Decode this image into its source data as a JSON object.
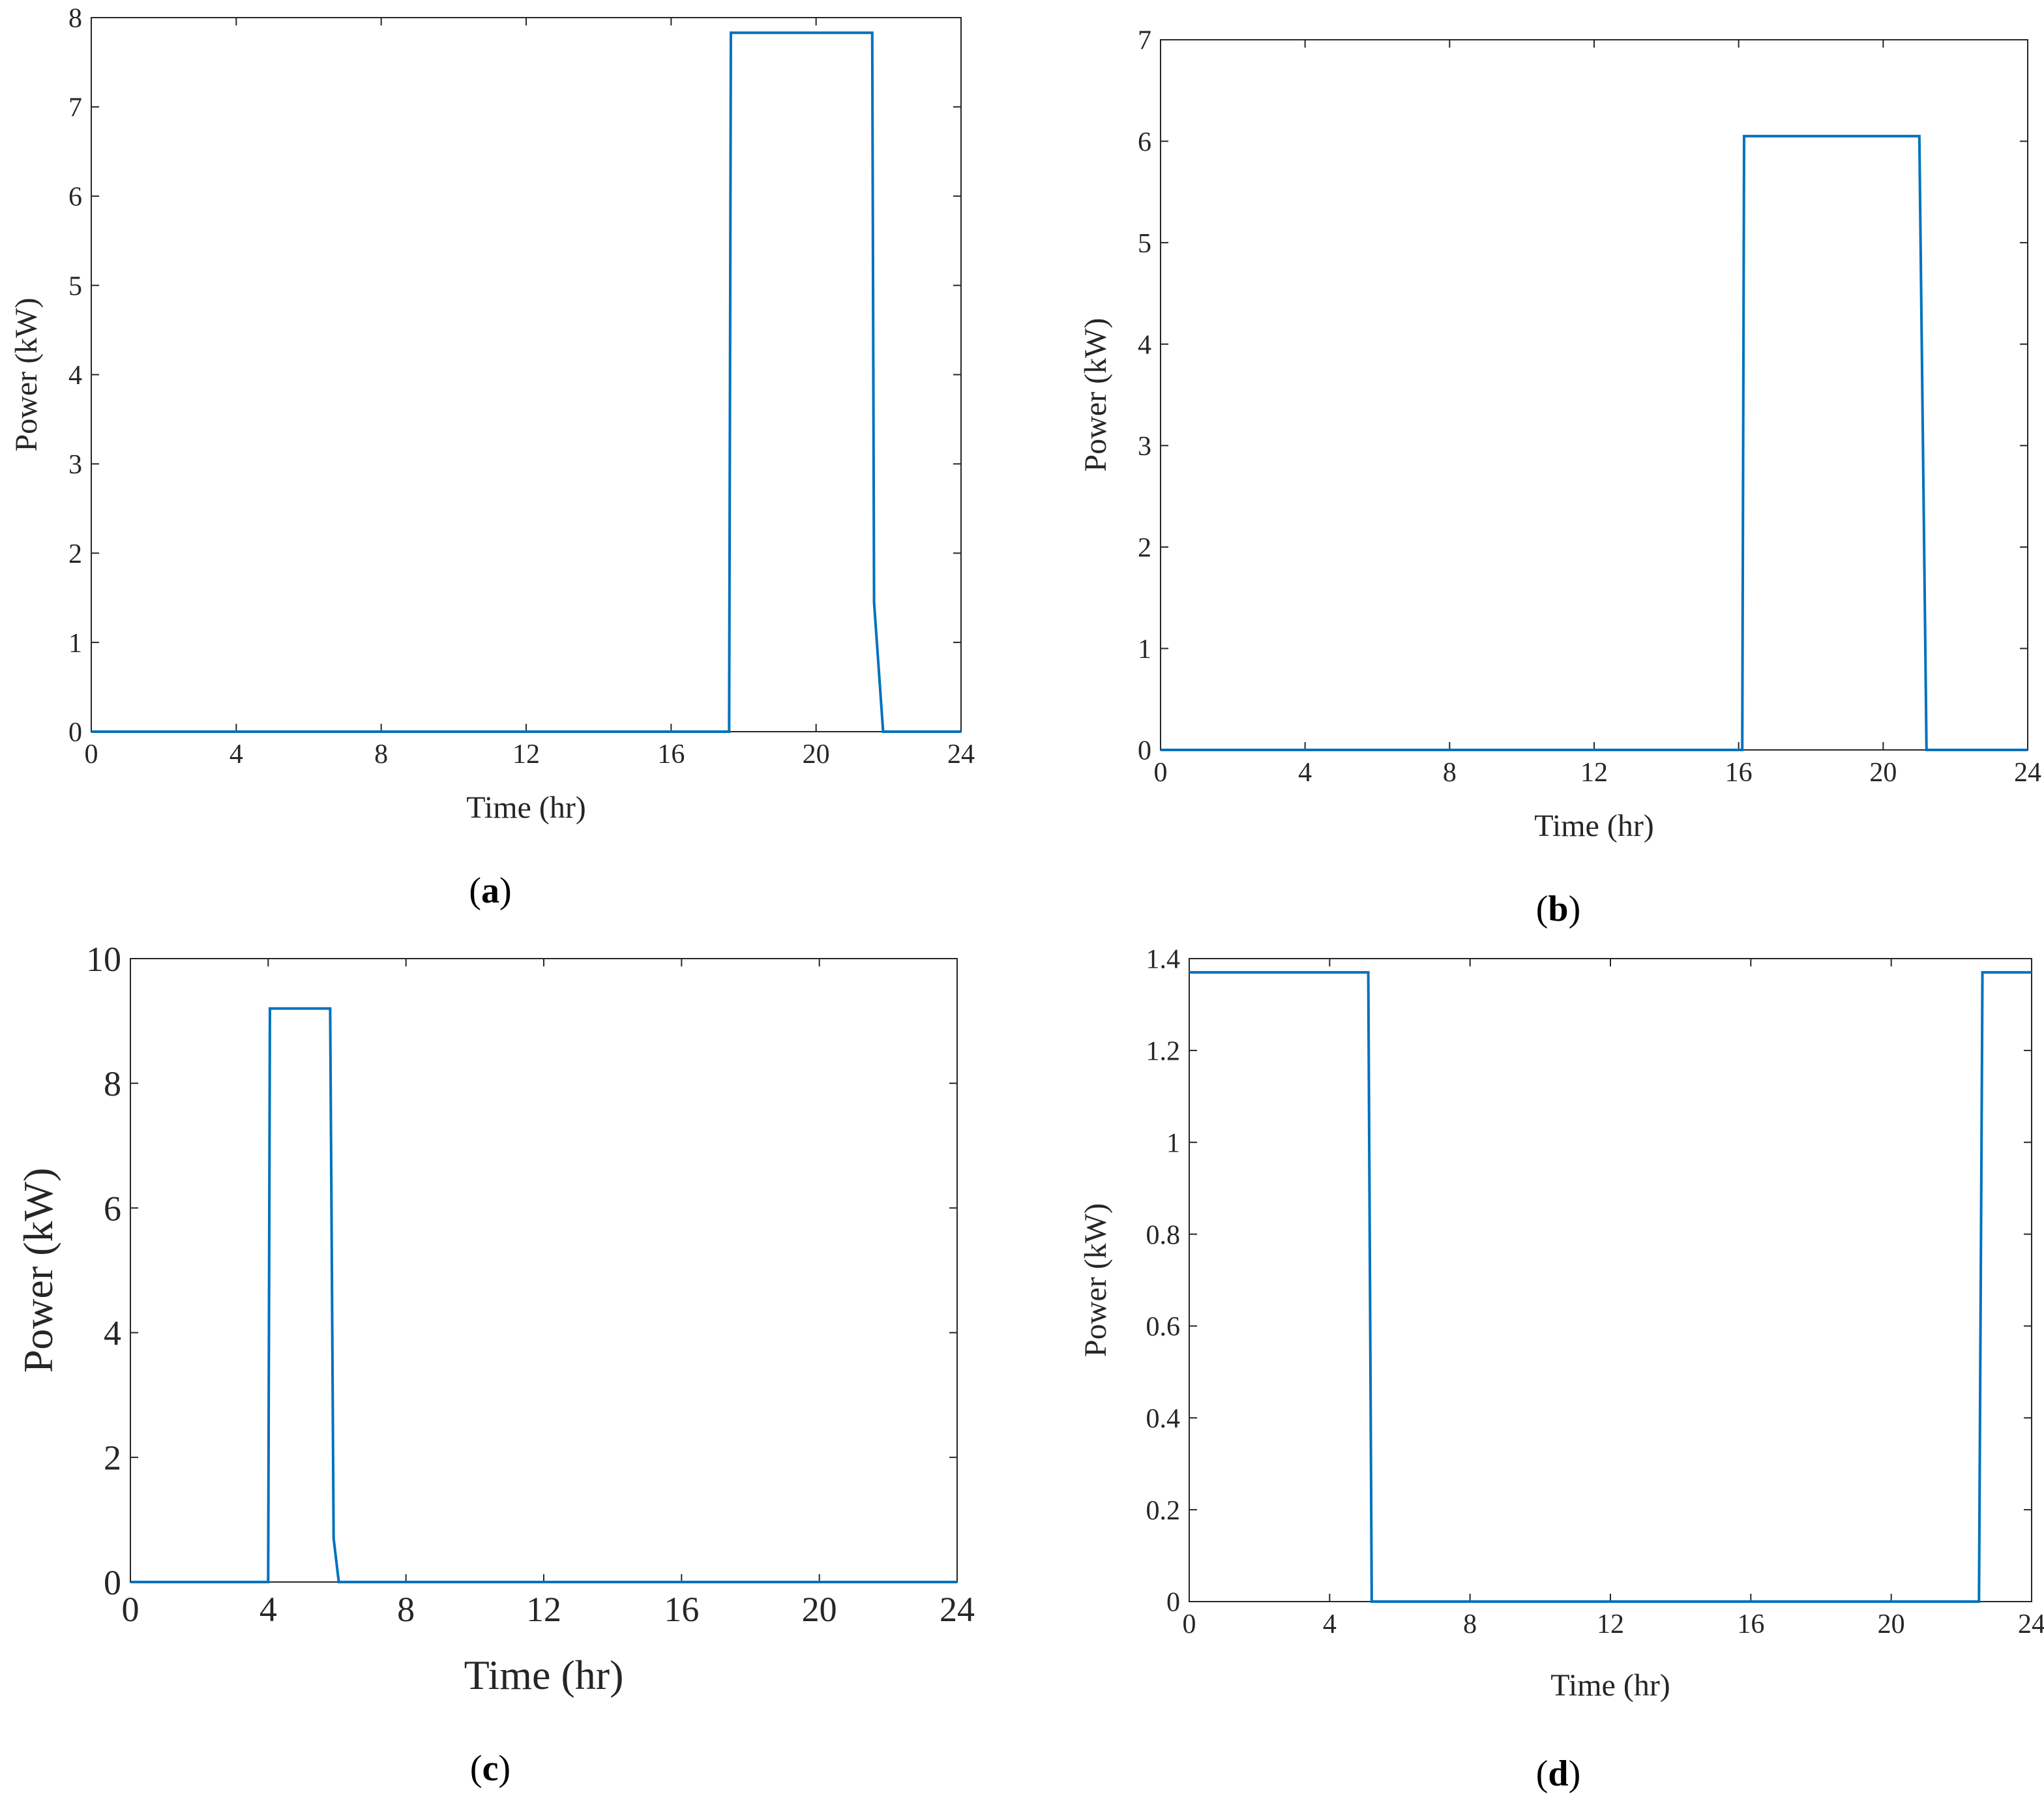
{
  "style": {
    "line_color": "#0072BD",
    "axis_color": "#262626",
    "background": "#ffffff"
  },
  "chart_data": [
    {
      "panel": "a",
      "caption": {
        "open": "(",
        "letter": "a",
        "close": ")"
      },
      "type": "line",
      "xlabel": "Time (hr)",
      "ylabel": "Power (kW)",
      "xlim": [
        0,
        24
      ],
      "ylim": [
        0,
        8
      ],
      "xticks": [
        0,
        4,
        8,
        12,
        16,
        20,
        24
      ],
      "yticks": [
        0,
        1,
        2,
        3,
        4,
        5,
        6,
        7,
        8
      ],
      "grid": false,
      "series": [
        {
          "x": [
            0,
            17.6,
            17.65,
            21.55,
            21.6,
            21.85,
            24
          ],
          "y": [
            0,
            0,
            7.83,
            7.83,
            1.45,
            0,
            0
          ]
        }
      ]
    },
    {
      "panel": "b",
      "caption": {
        "open": "(",
        "letter": "b",
        "close": ")"
      },
      "type": "line",
      "xlabel": "Time (hr)",
      "ylabel": "Power (kW)",
      "xlim": [
        0,
        24
      ],
      "ylim": [
        0,
        7
      ],
      "xticks": [
        0,
        4,
        8,
        12,
        16,
        20,
        24
      ],
      "yticks": [
        0,
        1,
        2,
        3,
        4,
        5,
        6,
        7
      ],
      "grid": false,
      "series": [
        {
          "x": [
            0,
            16.1,
            16.15,
            21.0,
            21.2,
            24
          ],
          "y": [
            0,
            0,
            6.05,
            6.05,
            0,
            0
          ]
        }
      ]
    },
    {
      "panel": "c",
      "caption": {
        "open": "(",
        "letter": "c",
        "close": ")"
      },
      "type": "line",
      "xlabel": "Time (hr)",
      "ylabel": "Power (kW)",
      "xlim": [
        0,
        24
      ],
      "ylim": [
        0,
        10
      ],
      "xticks": [
        0,
        4,
        8,
        12,
        16,
        20,
        24
      ],
      "yticks": [
        0,
        2,
        4,
        6,
        8,
        10
      ],
      "grid": false,
      "series": [
        {
          "x": [
            0,
            4.0,
            4.05,
            5.8,
            5.9,
            6.05,
            24
          ],
          "y": [
            0,
            0,
            9.2,
            9.2,
            0.7,
            0,
            0
          ]
        }
      ]
    },
    {
      "panel": "d",
      "caption": {
        "open": "(",
        "letter": "d",
        "close": ")"
      },
      "type": "line",
      "xlabel": "Time (hr)",
      "ylabel": "Power (kW)",
      "xlim": [
        0,
        24
      ],
      "ylim": [
        0,
        1.4
      ],
      "xticks": [
        0,
        4,
        8,
        12,
        16,
        20,
        24
      ],
      "yticks": [
        0,
        0.2,
        0.4,
        0.6,
        0.8,
        1,
        1.2,
        1.4
      ],
      "grid": false,
      "series": [
        {
          "x": [
            0,
            5.1,
            5.2,
            22.5,
            22.6,
            24
          ],
          "y": [
            1.37,
            1.37,
            0,
            0,
            1.37,
            1.37
          ]
        }
      ]
    }
  ]
}
